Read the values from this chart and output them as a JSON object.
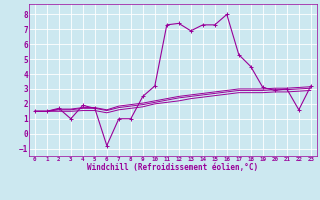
{
  "xlabel": "Windchill (Refroidissement éolien,°C)",
  "background_color": "#cce8f0",
  "grid_color": "#ffffff",
  "line_color": "#990099",
  "xlim": [
    -0.5,
    23.5
  ],
  "ylim": [
    -1.5,
    8.7
  ],
  "xticks": [
    0,
    1,
    2,
    3,
    4,
    5,
    6,
    7,
    8,
    9,
    10,
    11,
    12,
    13,
    14,
    15,
    16,
    17,
    18,
    19,
    20,
    21,
    22,
    23
  ],
  "yticks": [
    -1,
    0,
    1,
    2,
    3,
    4,
    5,
    6,
    7,
    8
  ],
  "main_x": [
    0,
    1,
    2,
    3,
    4,
    5,
    6,
    7,
    8,
    9,
    10,
    11,
    12,
    13,
    14,
    15,
    16,
    17,
    18,
    19,
    20,
    21,
    22,
    23
  ],
  "main_y": [
    1.5,
    1.5,
    1.7,
    1.0,
    1.9,
    1.7,
    -0.8,
    1.0,
    1.0,
    2.5,
    3.2,
    7.3,
    7.4,
    6.9,
    7.3,
    7.3,
    8.0,
    5.3,
    4.5,
    3.1,
    2.9,
    3.0,
    1.6,
    3.2
  ],
  "line1_x": [
    0,
    1,
    2,
    3,
    4,
    5,
    6,
    7,
    8,
    9,
    10,
    11,
    12,
    13,
    14,
    15,
    16,
    17,
    18,
    19,
    20,
    21,
    22,
    23
  ],
  "line1_y": [
    1.5,
    1.5,
    1.65,
    1.65,
    1.75,
    1.75,
    1.6,
    1.85,
    1.95,
    2.05,
    2.2,
    2.35,
    2.5,
    2.6,
    2.7,
    2.8,
    2.9,
    3.0,
    3.0,
    3.0,
    3.05,
    3.05,
    3.1,
    3.15
  ],
  "line2_x": [
    0,
    1,
    2,
    3,
    4,
    5,
    6,
    7,
    8,
    9,
    10,
    11,
    12,
    13,
    14,
    15,
    16,
    17,
    18,
    19,
    20,
    21,
    22,
    23
  ],
  "line2_y": [
    1.5,
    1.5,
    1.6,
    1.6,
    1.7,
    1.7,
    1.55,
    1.75,
    1.85,
    1.95,
    2.1,
    2.25,
    2.4,
    2.5,
    2.6,
    2.7,
    2.8,
    2.9,
    2.9,
    2.9,
    2.95,
    2.95,
    3.0,
    3.05
  ],
  "line3_x": [
    0,
    1,
    2,
    3,
    4,
    5,
    6,
    7,
    8,
    9,
    10,
    11,
    12,
    13,
    14,
    15,
    16,
    17,
    18,
    19,
    20,
    21,
    22,
    23
  ],
  "line3_y": [
    1.5,
    1.5,
    1.5,
    1.5,
    1.55,
    1.55,
    1.4,
    1.6,
    1.7,
    1.8,
    2.0,
    2.1,
    2.2,
    2.35,
    2.45,
    2.55,
    2.65,
    2.75,
    2.75,
    2.75,
    2.8,
    2.8,
    2.85,
    2.9
  ]
}
